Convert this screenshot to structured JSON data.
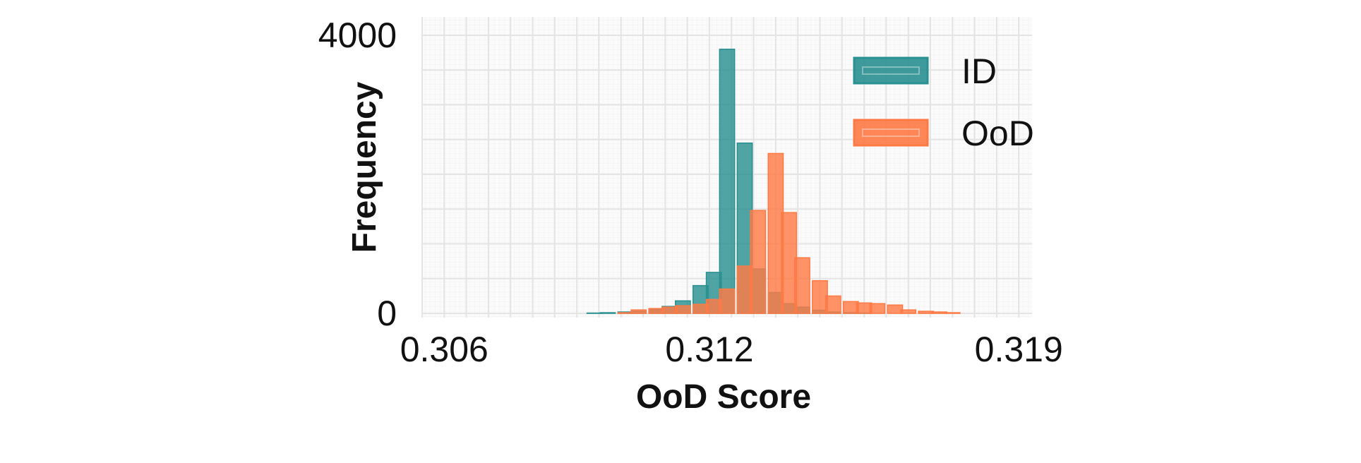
{
  "chart_data": {
    "type": "histogram",
    "xlabel": "OoD Score",
    "ylabel": "Frequency",
    "xlim": [
      0.3055,
      0.3193
    ],
    "ylim": [
      0,
      4000
    ],
    "x_ticks": [
      {
        "value": 0.306,
        "label": "0.306"
      },
      {
        "value": 0.312,
        "label": "0.312"
      },
      {
        "value": 0.319,
        "label": "0.319"
      }
    ],
    "y_ticks": [
      {
        "value": 0,
        "label": "0"
      },
      {
        "value": 4000,
        "label": "4000"
      }
    ],
    "grid": true,
    "legend_position": "top-right",
    "bin_width": 0.00034,
    "series": [
      {
        "name": "ID",
        "color": "#2a9090",
        "bins": [
          {
            "x": 0.3094,
            "y": 5
          },
          {
            "x": 0.3097,
            "y": 10
          },
          {
            "x": 0.3101,
            "y": 20
          },
          {
            "x": 0.3104,
            "y": 30
          },
          {
            "x": 0.3108,
            "y": 55
          },
          {
            "x": 0.3111,
            "y": 100
          },
          {
            "x": 0.3114,
            "y": 180
          },
          {
            "x": 0.3118,
            "y": 400
          },
          {
            "x": 0.3121,
            "y": 590
          },
          {
            "x": 0.3124,
            "y": 3800
          },
          {
            "x": 0.3128,
            "y": 2450
          },
          {
            "x": 0.3131,
            "y": 640
          },
          {
            "x": 0.3135,
            "y": 300
          },
          {
            "x": 0.3138,
            "y": 140
          },
          {
            "x": 0.3141,
            "y": 90
          },
          {
            "x": 0.3145,
            "y": 45
          },
          {
            "x": 0.3148,
            "y": 20
          },
          {
            "x": 0.3152,
            "y": 10
          },
          {
            "x": 0.3155,
            "y": 5
          }
        ]
      },
      {
        "name": "OoD",
        "color": "#ff7a45",
        "bins": [
          {
            "x": 0.3101,
            "y": 10
          },
          {
            "x": 0.3104,
            "y": 50
          },
          {
            "x": 0.3108,
            "y": 70
          },
          {
            "x": 0.3111,
            "y": 90
          },
          {
            "x": 0.3114,
            "y": 110
          },
          {
            "x": 0.3118,
            "y": 130
          },
          {
            "x": 0.3121,
            "y": 200
          },
          {
            "x": 0.3124,
            "y": 350
          },
          {
            "x": 0.3128,
            "y": 680
          },
          {
            "x": 0.3131,
            "y": 1480
          },
          {
            "x": 0.3135,
            "y": 2300
          },
          {
            "x": 0.3138,
            "y": 1450
          },
          {
            "x": 0.3141,
            "y": 800
          },
          {
            "x": 0.3145,
            "y": 470
          },
          {
            "x": 0.3148,
            "y": 250
          },
          {
            "x": 0.3152,
            "y": 170
          },
          {
            "x": 0.3155,
            "y": 150
          },
          {
            "x": 0.3158,
            "y": 140
          },
          {
            "x": 0.3162,
            "y": 120
          },
          {
            "x": 0.3165,
            "y": 50
          },
          {
            "x": 0.3169,
            "y": 30
          },
          {
            "x": 0.3172,
            "y": 20
          },
          {
            "x": 0.3175,
            "y": 10
          }
        ]
      }
    ]
  }
}
